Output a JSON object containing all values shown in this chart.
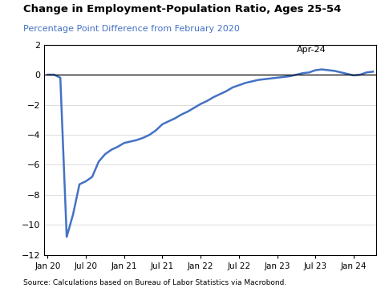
{
  "title": "Change in Employment-Population Ratio, Ages 25-54",
  "subtitle": "Percentage Point Difference from February 2020",
  "source": "Source: Calculations based on Bureau of Labor Statistics via Macrobond.",
  "annotation": "Apr-24",
  "line_color": "#4472C4",
  "subtitle_color": "#4472C4",
  "background_color": "#ffffff",
  "ylim": [
    -12,
    2
  ],
  "yticks": [
    -12,
    -10,
    -8,
    -6,
    -4,
    -2,
    0,
    2
  ],
  "xtick_labels": [
    "Jan 20",
    "Jul 20",
    "Jan 21",
    "Jul 21",
    "Jan 22",
    "Jul 22",
    "Jan 23",
    "Jul 23",
    "Jan 24"
  ],
  "xtick_positions": [
    0,
    6,
    12,
    18,
    24,
    30,
    36,
    42,
    48
  ],
  "months": [
    0.0,
    0.0,
    -0.2,
    -10.8,
    -9.3,
    -7.3,
    -7.1,
    -6.8,
    -5.8,
    -5.3,
    -5.0,
    -4.8,
    -4.55,
    -4.45,
    -4.35,
    -4.2,
    -4.0,
    -3.7,
    -3.3,
    -3.1,
    -2.9,
    -2.65,
    -2.45,
    -2.2,
    -1.95,
    -1.75,
    -1.5,
    -1.3,
    -1.1,
    -0.85,
    -0.7,
    -0.55,
    -0.45,
    -0.35,
    -0.3,
    -0.25,
    -0.2,
    -0.15,
    -0.1,
    0.0,
    0.1,
    0.15,
    0.3,
    0.35,
    0.3,
    0.25,
    0.15,
    0.05,
    -0.05,
    0.0,
    0.15,
    0.2
  ]
}
